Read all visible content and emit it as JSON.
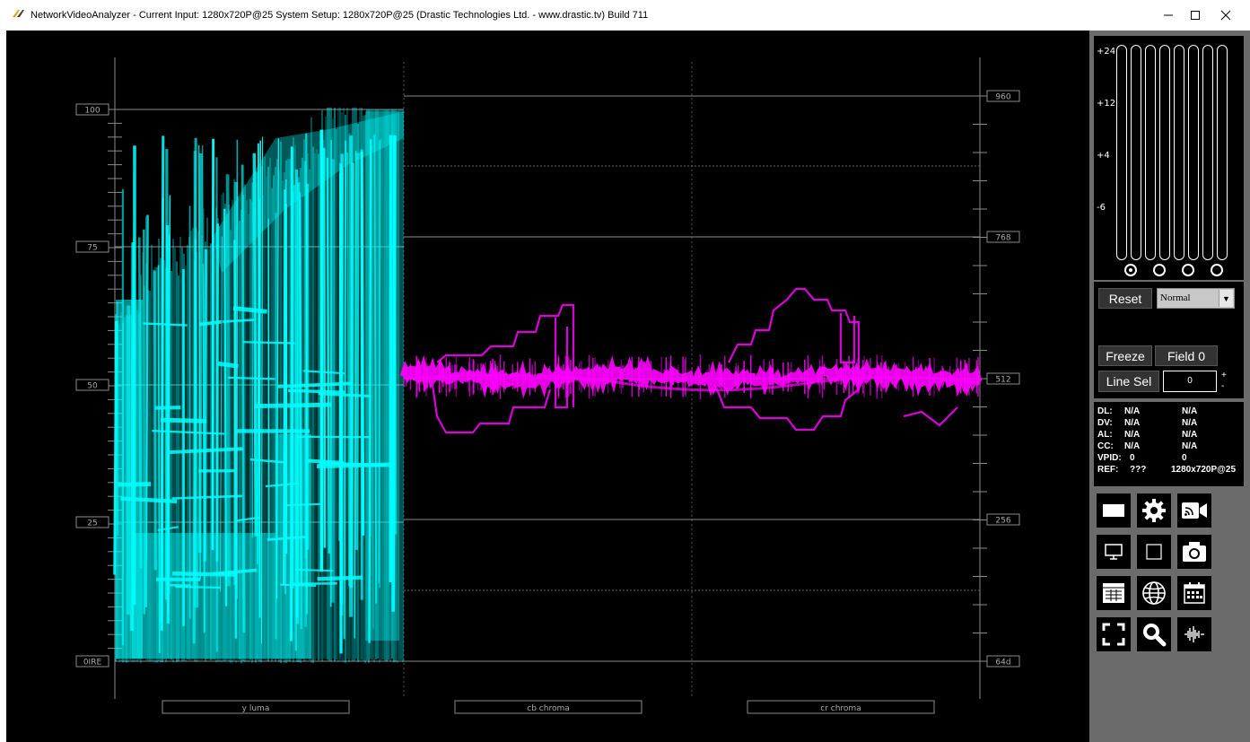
{
  "window": {
    "title": "NetworkVideoAnalyzer -  Current Input: 1280x720P@25   System Setup: 1280x720P@25    (Drastic Technologies Ltd. - www.drastic.tv) Build 711"
  },
  "scope": {
    "left_scale": [
      "100",
      "75",
      "50",
      "25",
      "0IRE"
    ],
    "right_scale": [
      "960",
      "768",
      "512",
      "256",
      "64d"
    ],
    "channels": [
      "y luma",
      "cb chroma",
      "cr chroma"
    ],
    "luma_color": "#00ffff",
    "chroma_color": "#ff00ff"
  },
  "audio": {
    "db_labels": [
      "+24",
      "+12",
      "+4",
      "-6"
    ],
    "channel_count": 8,
    "selected_group": 0
  },
  "controls": {
    "reset_label": "Reset",
    "mode_value": "Normal",
    "freeze_label": "Freeze",
    "field_label": "Field 0",
    "line_sel_label": "Line Sel",
    "line_value": "0",
    "plus": "+",
    "minus": "-"
  },
  "status": [
    {
      "key": "DL:",
      "a": "N/A",
      "b": "N/A"
    },
    {
      "key": "DV:",
      "a": "N/A",
      "b": "N/A"
    },
    {
      "key": "AL:",
      "a": "N/A",
      "b": "N/A"
    },
    {
      "key": "CC:",
      "a": "N/A",
      "b": "N/A"
    },
    {
      "key": "VPID:",
      "a": "0",
      "b": "0"
    },
    {
      "key": "REF:",
      "a": "???",
      "b": "1280x720P@25"
    }
  ],
  "toolbar_icons": [
    "monitor-wide-icon",
    "gear-icon",
    "stream-camera-icon",
    "display-icon",
    "square-icon",
    "camera-icon",
    "table-icon",
    "globe-icon",
    "calendar-icon",
    "fullscreen-icon",
    "search-icon",
    "waveform-icon"
  ]
}
